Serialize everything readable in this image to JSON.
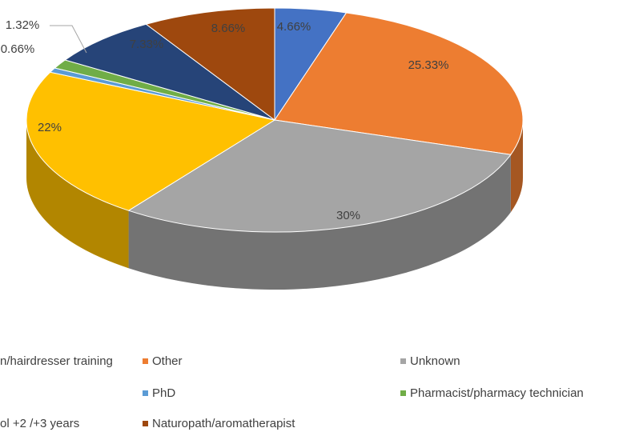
{
  "chart_data": {
    "type": "pie3d",
    "categories": [
      "n/hairdresser training",
      "Other",
      "Unknown",
      null,
      "PhD",
      "Pharmacist/pharmacy technician",
      "ol +2 /+3 years",
      "Naturopath/aromatherapist"
    ],
    "series": [
      {
        "values": [
          4.66,
          25.33,
          30,
          22,
          0.66,
          1.32,
          7.33,
          8.66
        ],
        "value_labels": [
          "4.66%",
          "25.33%",
          "30%",
          "22%",
          "0.66%",
          "1.32%",
          "7.33%",
          "8.66%"
        ],
        "colors": [
          "#4472c4",
          "#ed7d31",
          "#a5a5a5",
          "#ffc000",
          "#5b9bd5",
          "#70ad47",
          "#264478",
          "#9e480e"
        ]
      }
    ]
  }
}
